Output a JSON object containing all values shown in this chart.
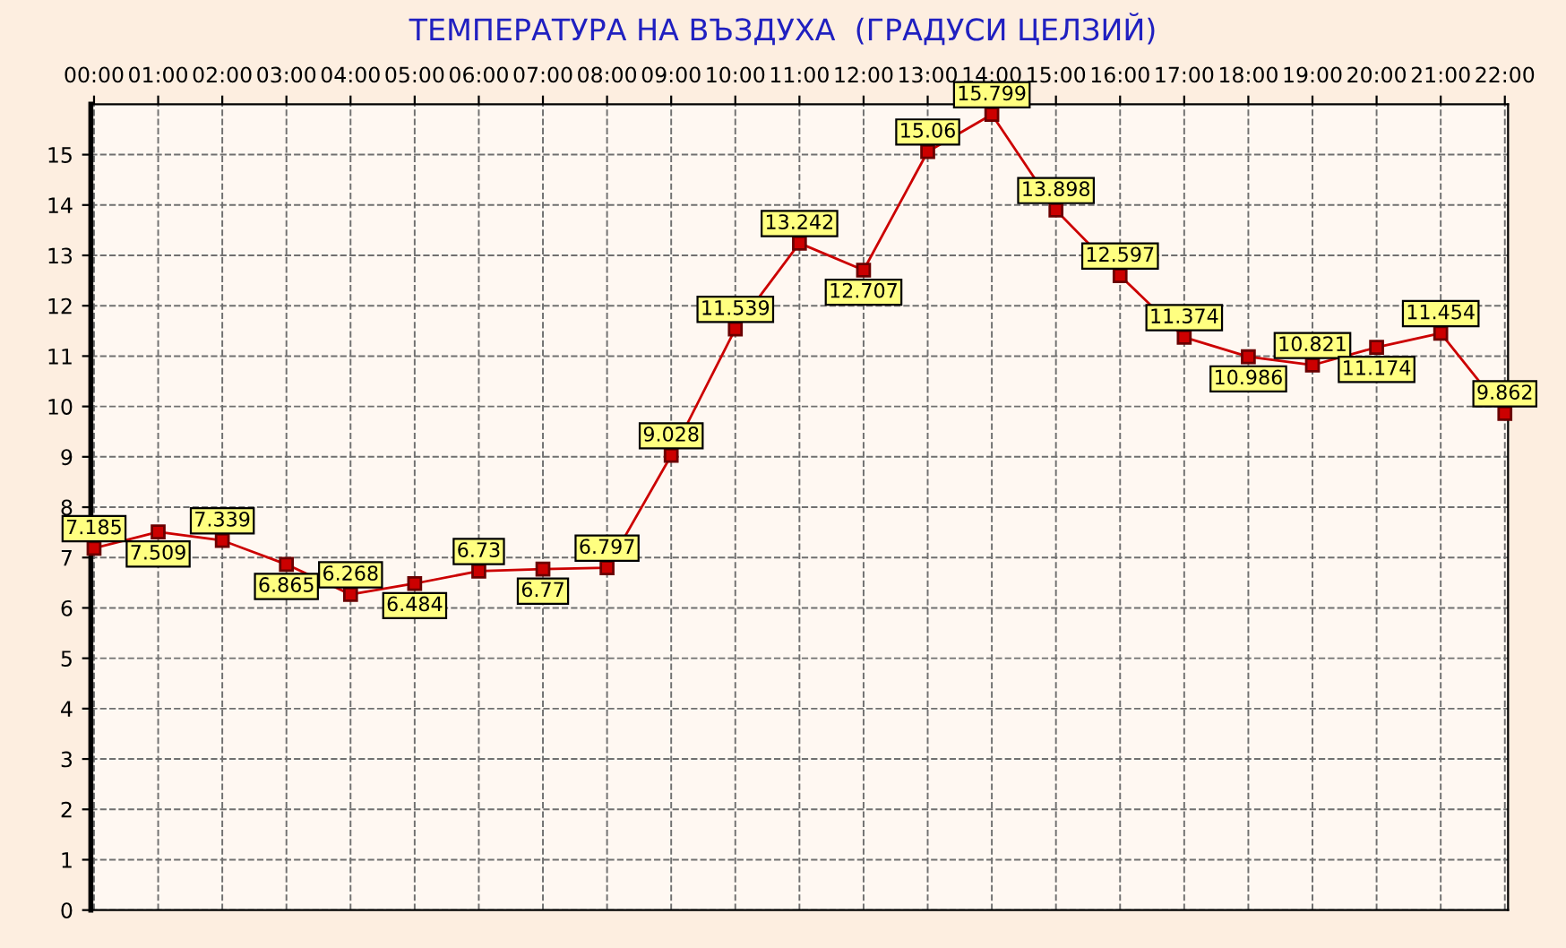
{
  "chart_data": {
    "type": "line",
    "title": "ТЕМПЕРАТУРА НА ВЪЗДУХА  (ГРАДУСИ ЦЕЛЗИЙ)",
    "categories": [
      "00:00",
      "01:00",
      "02:00",
      "03:00",
      "04:00",
      "05:00",
      "06:00",
      "07:00",
      "08:00",
      "09:00",
      "10:00",
      "11:00",
      "12:00",
      "13:00",
      "14:00",
      "15:00",
      "16:00",
      "17:00",
      "18:00",
      "19:00",
      "20:00",
      "21:00",
      "22:00"
    ],
    "series": [
      {
        "color": "#cc0000",
        "values": [
          7.185,
          7.509,
          7.339,
          6.865,
          6.268,
          6.484,
          6.73,
          6.77,
          6.797,
          9.028,
          11.539,
          13.242,
          12.707,
          15.06,
          15.799,
          13.898,
          12.597,
          11.374,
          10.986,
          10.821,
          11.174,
          11.454,
          9.862
        ]
      }
    ],
    "ylim": [
      0,
      16
    ],
    "yticks": [
      0,
      1,
      2,
      3,
      4,
      5,
      6,
      7,
      8,
      9,
      10,
      11,
      12,
      13,
      14,
      15
    ],
    "grid": true,
    "marker": "square",
    "line_style": "solid",
    "data_labels": true,
    "legend": false
  }
}
